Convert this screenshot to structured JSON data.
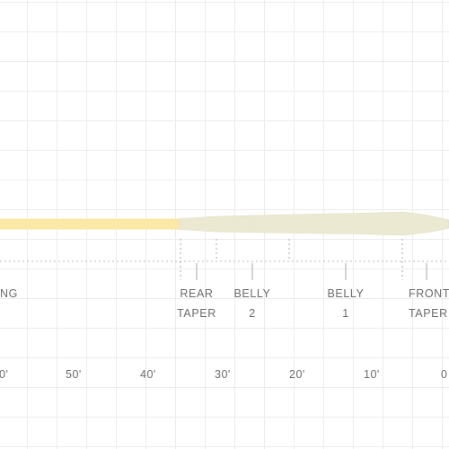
{
  "sections": [
    {
      "id": "running",
      "lines": [
        "NG",
        ""
      ]
    },
    {
      "id": "rear-taper",
      "lines": [
        "REAR",
        "TAPER"
      ]
    },
    {
      "id": "belly-2",
      "lines": [
        "BELLY",
        "2"
      ]
    },
    {
      "id": "belly-1",
      "lines": [
        "BELLY",
        "1"
      ]
    },
    {
      "id": "front-taper",
      "lines": [
        "FRONT",
        "TAPER"
      ]
    }
  ],
  "distance_scale": [
    "0'",
    "50'",
    "40'",
    "30'",
    "20'",
    "10'",
    "0"
  ],
  "colors": {
    "running_line": "#fbe7a6",
    "head": "#ece9d3",
    "head_edge": "#e0dcc0",
    "tick": "#b8b8b8",
    "label_text": "#6b6b6b",
    "grid": "#ececec"
  }
}
